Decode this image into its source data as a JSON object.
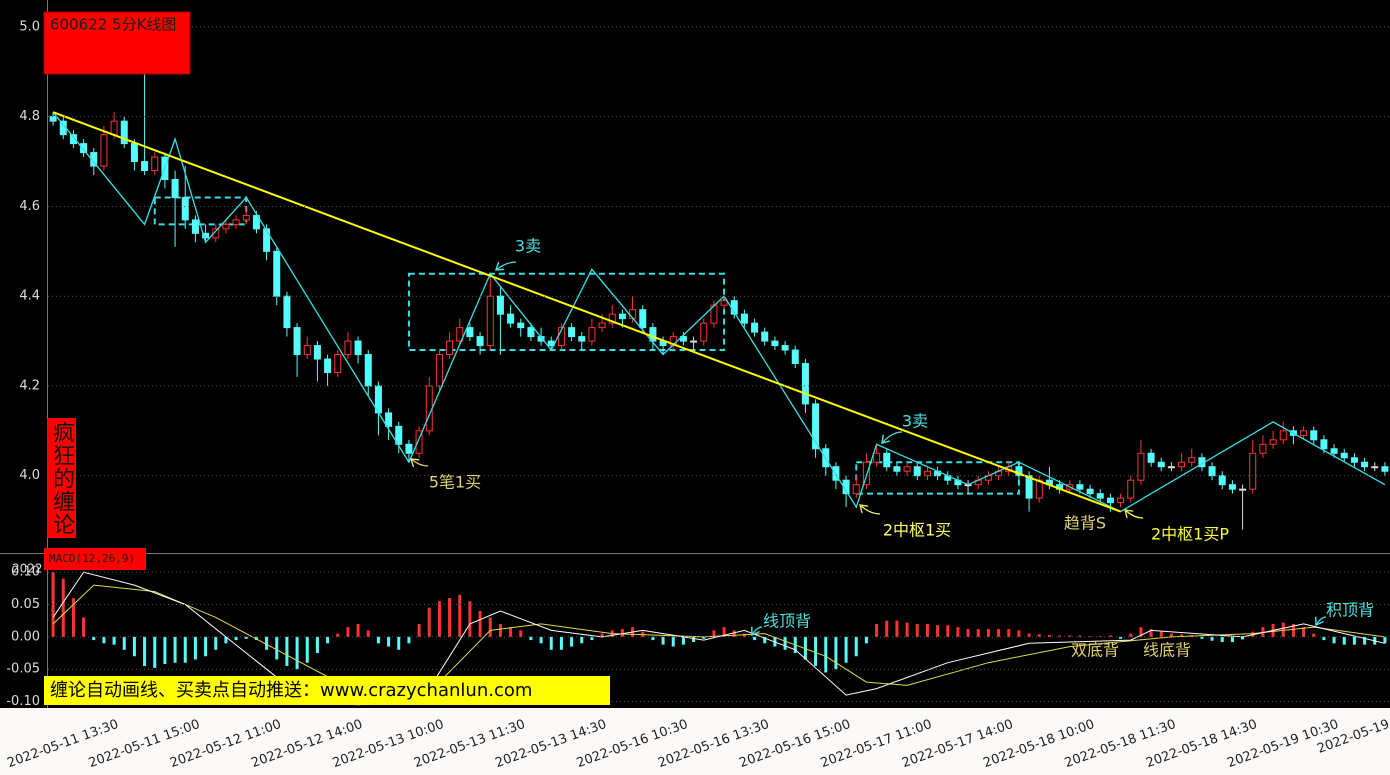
{
  "chart_data": [
    {
      "type": "candlestick",
      "title": "600622 5分K线图",
      "categories": [
        null,
        null,
        null,
        null,
        null,
        null,
        "2022-05-11 13:30",
        null,
        null,
        null,
        null,
        null,
        null,
        null,
        "2022-05-11 15:00",
        null,
        null,
        null,
        null,
        null,
        null,
        null,
        "2022-05-12 11:00",
        null,
        null,
        null,
        null,
        null,
        null,
        null,
        "2022-05-12 14:00",
        null,
        null,
        null,
        null,
        null,
        null,
        null,
        "2022-05-13 10:00",
        null,
        null,
        null,
        null,
        null,
        null,
        null,
        "2022-05-13 11:30",
        null,
        null,
        null,
        null,
        null,
        null,
        null,
        "2022-05-13 14:30",
        null,
        null,
        null,
        null,
        null,
        null,
        null,
        "2022-05-16 10:30",
        null,
        null,
        null,
        null,
        null,
        null,
        null,
        "2022-05-16 13:30",
        null,
        null,
        null,
        null,
        null,
        null,
        null,
        "2022-05-16 15:00",
        null,
        null,
        null,
        null,
        null,
        null,
        null,
        "2022-05-17 11:00",
        null,
        null,
        null,
        null,
        null,
        null,
        null,
        "2022-05-17 14:00",
        null,
        null,
        null,
        null,
        null,
        null,
        null,
        "2022-05-18 10:00",
        null,
        null,
        null,
        null,
        null,
        null,
        null,
        "2022-05-18 11:30",
        null,
        null,
        null,
        null,
        null,
        null,
        null,
        "2022-05-18 14:30",
        null,
        null,
        null,
        null,
        null,
        null,
        null,
        "2022-05-19 10:30",
        null,
        null,
        null,
        null,
        "2022-05-19"
      ],
      "open": [
        4.8,
        4.79,
        4.76,
        4.74,
        4.72,
        4.69,
        4.76,
        4.79,
        4.74,
        4.7,
        4.68,
        4.71,
        4.66,
        4.62,
        4.57,
        4.54,
        4.53,
        4.55,
        4.56,
        4.57,
        4.58,
        4.55,
        4.5,
        4.4,
        4.33,
        4.27,
        4.29,
        4.26,
        4.23,
        4.27,
        4.3,
        4.27,
        4.2,
        4.14,
        4.11,
        4.07,
        4.05,
        4.1,
        4.2,
        4.27,
        4.3,
        4.33,
        4.31,
        4.29,
        4.4,
        4.36,
        4.34,
        4.33,
        4.31,
        4.3,
        4.29,
        4.33,
        4.31,
        4.3,
        4.33,
        4.34,
        4.36,
        4.35,
        4.37,
        4.33,
        4.3,
        4.29,
        4.31,
        4.3,
        4.3,
        4.34,
        4.38,
        4.39,
        4.36,
        4.34,
        4.32,
        4.3,
        4.29,
        4.28,
        4.25,
        4.16,
        4.06,
        4.02,
        3.99,
        3.96,
        3.98,
        4.03,
        4.05,
        4.02,
        4.01,
        4.02,
        4.0,
        4.01,
        4.0,
        3.99,
        3.98,
        3.98,
        3.99,
        4.0,
        4.01,
        4.02,
        4.0,
        3.95,
        3.99,
        3.98,
        3.97,
        3.98,
        3.97,
        3.96,
        3.95,
        3.94,
        3.95,
        3.99,
        4.05,
        4.03,
        4.02,
        4.02,
        4.03,
        4.04,
        4.02,
        4.0,
        3.98,
        3.97,
        3.97,
        4.05,
        4.07,
        4.08,
        4.1,
        4.09,
        4.1,
        4.08,
        4.06,
        4.05,
        4.04,
        4.03,
        4.02,
        4.02
      ],
      "high": [
        4.81,
        4.8,
        4.77,
        4.75,
        4.73,
        4.78,
        4.81,
        4.8,
        4.75,
        4.9,
        4.72,
        4.72,
        4.68,
        4.69,
        4.58,
        4.56,
        4.56,
        4.57,
        4.58,
        4.6,
        4.59,
        4.56,
        4.51,
        4.41,
        4.34,
        4.31,
        4.3,
        4.27,
        4.28,
        4.32,
        4.31,
        4.28,
        4.21,
        4.15,
        4.12,
        4.08,
        4.11,
        4.22,
        4.28,
        4.32,
        4.35,
        4.34,
        4.32,
        4.45,
        4.42,
        4.38,
        4.35,
        4.34,
        4.33,
        4.31,
        4.34,
        4.34,
        4.32,
        4.35,
        4.36,
        4.38,
        4.37,
        4.4,
        4.38,
        4.34,
        4.31,
        4.32,
        4.32,
        4.31,
        4.35,
        4.39,
        4.4,
        4.4,
        4.37,
        4.35,
        4.33,
        4.31,
        4.3,
        4.29,
        4.26,
        4.17,
        4.07,
        4.03,
        4.0,
        4.0,
        4.05,
        4.07,
        4.06,
        4.03,
        4.03,
        4.03,
        4.02,
        4.02,
        4.01,
        4.0,
        3.99,
        4.0,
        4.01,
        4.02,
        4.03,
        4.03,
        4.01,
        4.0,
        4.02,
        3.99,
        3.99,
        3.99,
        3.98,
        3.97,
        3.96,
        3.96,
        4.0,
        4.08,
        4.06,
        4.04,
        4.03,
        4.05,
        4.06,
        4.05,
        4.03,
        4.01,
        3.99,
        3.98,
        4.08,
        4.09,
        4.1,
        4.12,
        4.11,
        4.11,
        4.11,
        4.09,
        4.07,
        4.06,
        4.05,
        4.04,
        4.03,
        4.03
      ],
      "low": [
        4.78,
        4.75,
        4.73,
        4.71,
        4.67,
        4.68,
        4.75,
        4.73,
        4.68,
        4.67,
        4.67,
        4.64,
        4.51,
        4.55,
        4.52,
        4.52,
        4.52,
        4.54,
        4.55,
        4.56,
        4.54,
        4.48,
        4.38,
        4.31,
        4.22,
        4.26,
        4.21,
        4.2,
        4.22,
        4.26,
        4.25,
        4.18,
        4.09,
        4.08,
        4.05,
        4.03,
        4.04,
        4.09,
        4.19,
        4.26,
        4.29,
        4.3,
        4.27,
        4.28,
        4.27,
        4.33,
        4.31,
        4.3,
        4.29,
        4.28,
        4.28,
        4.3,
        4.28,
        4.29,
        4.32,
        4.33,
        4.33,
        4.34,
        4.32,
        4.28,
        4.27,
        4.28,
        4.29,
        4.28,
        4.29,
        4.33,
        4.37,
        4.35,
        4.33,
        4.31,
        4.29,
        4.28,
        4.27,
        4.24,
        4.14,
        4.04,
        4.0,
        3.97,
        3.93,
        3.95,
        3.97,
        4.02,
        4.01,
        4.0,
        4.0,
        3.99,
        3.99,
        3.99,
        3.98,
        3.97,
        3.96,
        3.97,
        3.98,
        3.99,
        4.0,
        3.99,
        3.92,
        3.94,
        3.97,
        3.96,
        3.96,
        3.96,
        3.95,
        3.94,
        3.92,
        3.93,
        3.94,
        3.98,
        4.02,
        4.01,
        4.01,
        4.01,
        4.02,
        4.01,
        3.99,
        3.97,
        3.96,
        3.88,
        3.96,
        4.04,
        4.06,
        4.07,
        4.07,
        4.08,
        4.07,
        4.05,
        4.04,
        4.03,
        4.02,
        4.01,
        4.01,
        4.0
      ],
      "close": [
        4.79,
        4.76,
        4.74,
        4.72,
        4.69,
        4.76,
        4.79,
        4.74,
        4.7,
        4.68,
        4.71,
        4.66,
        4.62,
        4.57,
        4.54,
        4.53,
        4.55,
        4.56,
        4.57,
        4.58,
        4.55,
        4.5,
        4.4,
        4.33,
        4.27,
        4.29,
        4.26,
        4.23,
        4.27,
        4.3,
        4.27,
        4.2,
        4.14,
        4.11,
        4.07,
        4.05,
        4.1,
        4.2,
        4.27,
        4.3,
        4.33,
        4.31,
        4.29,
        4.4,
        4.36,
        4.34,
        4.33,
        4.31,
        4.3,
        4.29,
        4.33,
        4.31,
        4.3,
        4.33,
        4.34,
        4.36,
        4.35,
        4.37,
        4.33,
        4.3,
        4.29,
        4.31,
        4.3,
        4.3,
        4.34,
        4.38,
        4.39,
        4.36,
        4.34,
        4.32,
        4.3,
        4.29,
        4.28,
        4.25,
        4.16,
        4.06,
        4.02,
        3.99,
        3.96,
        3.98,
        4.03,
        4.05,
        4.02,
        4.01,
        4.02,
        4.0,
        4.01,
        4.0,
        3.99,
        3.98,
        3.98,
        3.99,
        4.0,
        4.01,
        4.02,
        4.0,
        3.95,
        3.99,
        3.98,
        3.97,
        3.98,
        3.97,
        3.96,
        3.95,
        3.94,
        3.95,
        3.99,
        4.05,
        4.03,
        4.02,
        4.02,
        4.03,
        4.04,
        4.02,
        4.0,
        3.98,
        3.97,
        3.97,
        4.05,
        4.07,
        4.08,
        4.1,
        4.09,
        4.1,
        4.08,
        4.06,
        4.05,
        4.04,
        4.03,
        4.02,
        4.02,
        4.01
      ],
      "up_color": "#ff3232",
      "down_color": "#54fcfc",
      "flat_color": "#dddddd",
      "ylim": [
        3.83,
        5.06
      ],
      "yticks": [
        {
          "value": 4,
          "label": "4.0"
        },
        4.2,
        4.4,
        4.6,
        4.8,
        {
          "value": 5,
          "label": "5.0"
        }
      ],
      "grid": true,
      "bi": {
        "color": "#36e0e6",
        "x": [
          0,
          9,
          12,
          15,
          19,
          35,
          43,
          49,
          53,
          60,
          66,
          79,
          81,
          90,
          95,
          105,
          120,
          131
        ],
        "values": [
          4.81,
          4.56,
          4.75,
          4.52,
          4.62,
          4.03,
          4.45,
          4.28,
          4.46,
          4.27,
          4.4,
          3.93,
          4.07,
          3.98,
          4.03,
          3.92,
          4.12,
          3.98
        ]
      },
      "trend": {
        "color": "#ffff00",
        "x": [
          0,
          105
        ],
        "values": [
          4.81,
          3.92
        ]
      },
      "zone_color": "#36e0e6",
      "zones": [
        {
          "start": 10,
          "end": 19,
          "low": 4.56,
          "high": 4.62
        },
        {
          "start": 35,
          "end": 66,
          "low": 4.28,
          "high": 4.45
        },
        {
          "start": 79,
          "end": 95,
          "low": 3.96,
          "high": 4.03
        }
      ],
      "annotations": [
        "3卖",
        "5笔1买",
        "3卖",
        "2中枢1买",
        "趋背S",
        "2中枢1买P"
      ]
    },
    {
      "type": "macd",
      "title": "MACD(12,26,9)",
      "histogram": [
        0.1,
        0.09,
        0.06,
        0.03,
        -0.005,
        -0.01,
        -0.012,
        -0.02,
        -0.03,
        -0.045,
        -0.048,
        -0.042,
        -0.04,
        -0.04,
        -0.035,
        -0.03,
        -0.02,
        -0.01,
        -0.005,
        -0.003,
        -0.005,
        -0.02,
        -0.035,
        -0.045,
        -0.05,
        -0.04,
        -0.025,
        -0.01,
        0.005,
        0.015,
        0.02,
        0.01,
        -0.01,
        -0.015,
        -0.02,
        -0.01,
        0.02,
        0.045,
        0.055,
        0.06,
        0.065,
        0.055,
        0.04,
        0.03,
        0.02,
        0.015,
        0.01,
        -0.005,
        -0.01,
        -0.02,
        -0.02,
        -0.015,
        -0.01,
        -0.005,
        0.005,
        0.01,
        0.012,
        0.015,
        0.008,
        -0.005,
        -0.012,
        -0.015,
        -0.012,
        -0.008,
        -0.003,
        0.01,
        0.015,
        0.01,
        0.005,
        -0.005,
        -0.01,
        -0.015,
        -0.02,
        -0.025,
        -0.035,
        -0.045,
        -0.055,
        -0.05,
        -0.04,
        -0.03,
        -0.01,
        0.02,
        0.025,
        0.025,
        0.022,
        0.02,
        0.02,
        0.018,
        0.018,
        0.015,
        0.012,
        0.012,
        0.012,
        0.012,
        0.012,
        0.01,
        0.005,
        0.004,
        0.003,
        0.002,
        0.002,
        0.002,
        0.001,
        0.001,
        0.002,
        -0.003,
        0.005,
        0.015,
        0.012,
        0.008,
        0.005,
        0.004,
        0.003,
        -0.003,
        -0.006,
        -0.008,
        -0.008,
        -0.004,
        0.008,
        0.015,
        0.02,
        0.022,
        0.02,
        0.015,
        0.005,
        -0.005,
        -0.01,
        -0.012,
        -0.012,
        -0.012,
        -0.012,
        -0.01
      ],
      "up_color": "#ff3232",
      "down_color": "#54fcfc",
      "dif": {
        "color": "#ffffff",
        "x": [
          0,
          3,
          8,
          13,
          17,
          21,
          25,
          30,
          34,
          37,
          41,
          44,
          49,
          54,
          58,
          64,
          68,
          73,
          78,
          81,
          88,
          96,
          106,
          108,
          117,
          123,
          131
        ],
        "values": [
          0.03,
          0.1,
          0.08,
          0.05,
          0.0,
          -0.05,
          -0.1,
          -0.105,
          -0.1,
          -0.08,
          0.02,
          0.04,
          0.01,
          0.0,
          0.01,
          -0.005,
          0.01,
          -0.02,
          -0.09,
          -0.08,
          -0.04,
          -0.01,
          -0.005,
          0.01,
          0.0,
          0.02,
          -0.01
        ]
      },
      "dea": {
        "color": "#e6d84a",
        "x": [
          0,
          4,
          10,
          16,
          22,
          28,
          34,
          38,
          43,
          48,
          55,
          64,
          70,
          76,
          80,
          84,
          92,
          100,
          110,
          118,
          124,
          131
        ],
        "values": [
          0.02,
          0.08,
          0.07,
          0.03,
          -0.02,
          -0.07,
          -0.1,
          -0.07,
          0.01,
          0.02,
          0.005,
          0.0,
          0.005,
          -0.03,
          -0.07,
          -0.075,
          -0.04,
          -0.015,
          0.0,
          0.005,
          0.015,
          0.0
        ]
      },
      "ylim": [
        -0.11,
        0.125
      ],
      "yticks": [
        {
          "value": -0.1,
          "label": "-0.10"
        },
        -0.05,
        {
          "value": 0,
          "label": "0.00"
        },
        0.05,
        {
          "value": 0.1,
          "label": "0.10"
        }
      ],
      "grid": true,
      "annotations": [
        "线顶背",
        "双底背",
        "线底背",
        "积顶背"
      ]
    }
  ],
  "brand": "疯狂的缠论",
  "banner": "缠论自动画线、买卖点自动推送：www.crazychanlun.com",
  "axis_fragment": "2022"
}
